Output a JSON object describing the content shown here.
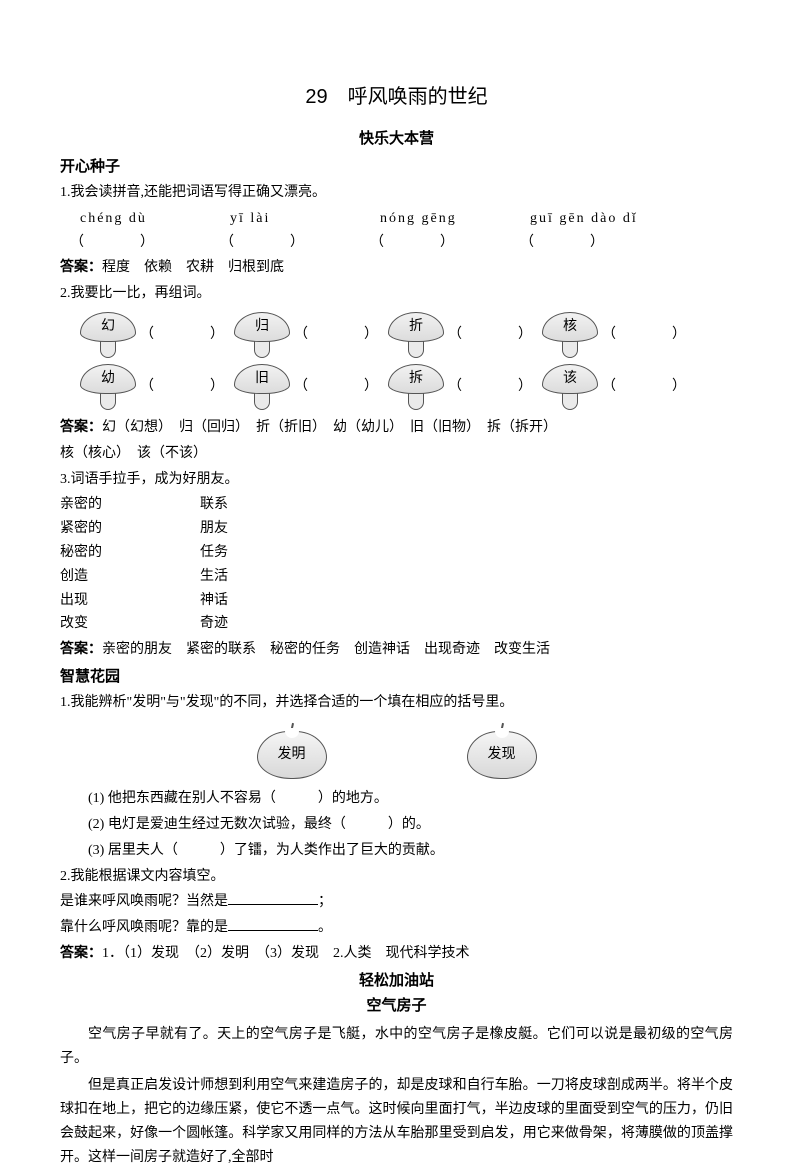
{
  "title": "29　呼风唤雨的世纪",
  "camp_title": "快乐大本营",
  "seed_head": "开心种子",
  "q1": {
    "prompt": "1.我会读拼音,还能把词语写得正确又漂亮。",
    "pinyin": [
      "chéng dù",
      "yī lài",
      "nóng gēng",
      "guī gēn dào dǐ"
    ],
    "paren": "（　　　　）",
    "answer_label": "答案：",
    "answer": "程度　依赖　农耕　归根到底"
  },
  "q2": {
    "prompt": "2.我要比一比，再组词。",
    "row1": [
      "幻",
      "归",
      "折",
      "核"
    ],
    "row2": [
      "幼",
      "旧",
      "拆",
      "该"
    ],
    "paren": "（　　　　）",
    "answer_label": "答案：",
    "answer_a": "幻（幻想）　归（回归）　折（折旧）　幼（幼儿）　旧（旧物）　拆（拆开）",
    "answer_b": "核（核心）　该（不该）"
  },
  "q3": {
    "prompt": "3.词语手拉手，成为好朋友。",
    "pairs": [
      [
        "亲密的",
        "联系"
      ],
      [
        "紧密的",
        "朋友"
      ],
      [
        "秘密的",
        "任务"
      ],
      [
        "创造",
        "生活"
      ],
      [
        "出现",
        "神话"
      ],
      [
        "改变",
        "奇迹"
      ]
    ],
    "answer_label": "答案：",
    "answer": "亲密的朋友　紧密的联系　秘密的任务　创造神话　出现奇迹　改变生活"
  },
  "garden_head": "智慧花园",
  "g1": {
    "prompt": "1.我能辨析\"发明\"与\"发现\"的不同，并选择合适的一个填在相应的括号里。",
    "apple1": "发明",
    "apple2": "发现",
    "items": [
      "(1) 他把东西藏在别人不容易（　　　）的地方。",
      "(2) 电灯是爱迪生经过无数次试验，最终（　　　）的。",
      "(3) 居里夫人（　　　）了镭，为人类作出了巨大的贡献。"
    ]
  },
  "g2": {
    "prompt": "2.我能根据课文内容填空。",
    "line1_a": "是谁来呼风唤雨呢？当然是",
    "line1_b": "；",
    "line2_a": "靠什么呼风唤雨呢？靠的是",
    "line2_b": "。"
  },
  "g_answer_label": "答案：",
  "g_answer": "1．（1）发现　（2）发明　（3）发现　2.人类　现代科学技术",
  "station_head": "轻松加油站",
  "story_title": "空气房子",
  "para1": "空气房子早就有了。天上的空气房子是飞艇，水中的空气房子是橡皮艇。它们可以说是最初级的空气房子。",
  "para2": "但是真正启发设计师想到利用空气来建造房子的，却是皮球和自行车胎。一刀将皮球剖成两半。将半个皮球扣在地上，把它的边缘压紧，使它不透一点气。这时候向里面打气，半边皮球的里面受到空气的压力，仍旧会鼓起来，好像一个圆帐篷。科学家又用同样的方法从车胎那里受到启发，用它来做骨架，将薄膜做的顶盖撑开。这样一间房子就造好了,全部时"
}
